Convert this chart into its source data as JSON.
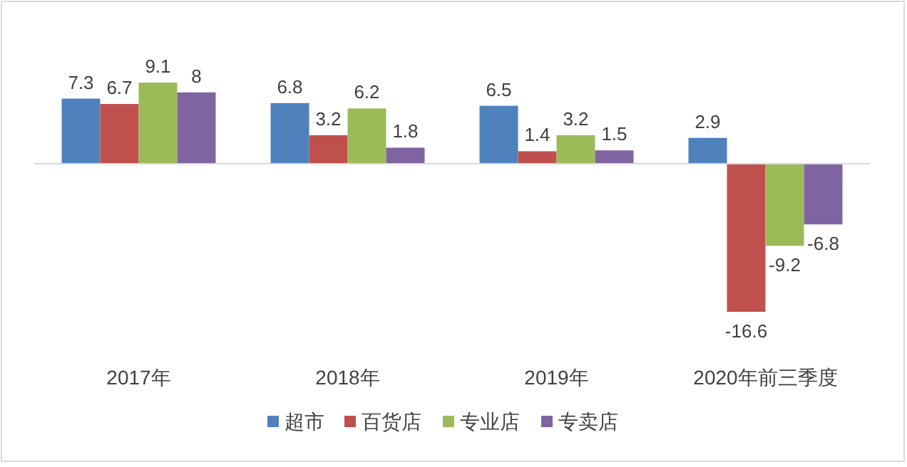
{
  "chart_data": {
    "type": "bar",
    "categories": [
      "2017年",
      "2018年",
      "2019年",
      "2020年前三季度"
    ],
    "series": [
      {
        "name": "超市",
        "color": "#4f81bd",
        "values": [
          7.3,
          6.8,
          6.5,
          2.9
        ]
      },
      {
        "name": "百货店",
        "color": "#c0504d",
        "values": [
          6.7,
          3.2,
          1.4,
          -16.6
        ]
      },
      {
        "name": "专业店",
        "color": "#9bbb59",
        "values": [
          9.1,
          6.2,
          3.2,
          -9.2
        ]
      },
      {
        "name": "专卖店",
        "color": "#8064a2",
        "values": [
          8,
          1.8,
          1.5,
          -6.8
        ]
      }
    ],
    "data_labels": true,
    "legend": "bottom",
    "grid": false
  }
}
